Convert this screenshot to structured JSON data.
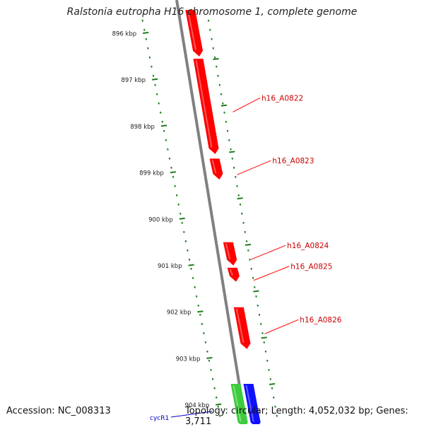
{
  "title": "Ralstonia eutropha H16 chromosome 1, complete genome",
  "footer": {
    "accession": "Accession: NC_008313",
    "summary": "Topology: circular; Length: 4,052,032 bp; Genes: 3,711"
  },
  "colors": {
    "forward_gene": "#ff0000",
    "gene_label": "#cc0000",
    "ruler_ticks": "#1e7d1e",
    "backbone": "#808080",
    "green_feature": "#3dcc3d",
    "blue_feature": "#1010ff",
    "blue_label": "#0000cc"
  },
  "ruler": {
    "ticks": [
      {
        "kbp": 896,
        "label": "896 kbp"
      },
      {
        "kbp": 897,
        "label": "897 kbp"
      },
      {
        "kbp": 898,
        "label": "898 kbp"
      },
      {
        "kbp": 899,
        "label": "899 kbp"
      },
      {
        "kbp": 900,
        "label": "900 kbp"
      },
      {
        "kbp": 901,
        "label": "901 kbp"
      },
      {
        "kbp": 902,
        "label": "902 kbp"
      },
      {
        "kbp": 903,
        "label": "903 kbp"
      },
      {
        "kbp": 904,
        "label": "904 kbp"
      }
    ]
  },
  "genes": [
    {
      "name": "",
      "start_kbp": 895.5,
      "end_kbp": 896.5,
      "color": "red"
    },
    {
      "name": "h16_A0822",
      "start_kbp": 896.55,
      "end_kbp": 898.6,
      "color": "red"
    },
    {
      "name": "h16_A0823",
      "start_kbp": 898.7,
      "end_kbp": 899.15,
      "color": "red"
    },
    {
      "name": "h16_A0824",
      "start_kbp": 900.5,
      "end_kbp": 901.0,
      "color": "red"
    },
    {
      "name": "h16_A0825",
      "start_kbp": 901.05,
      "end_kbp": 901.35,
      "color": "red"
    },
    {
      "name": "h16_A0826",
      "start_kbp": 901.9,
      "end_kbp": 902.8,
      "color": "red"
    },
    {
      "name": "",
      "start_kbp": 903.55,
      "end_kbp": 904.5,
      "color": "green"
    },
    {
      "name": "cycR1",
      "start_kbp": 903.55,
      "end_kbp": 904.5,
      "color": "blue"
    }
  ]
}
